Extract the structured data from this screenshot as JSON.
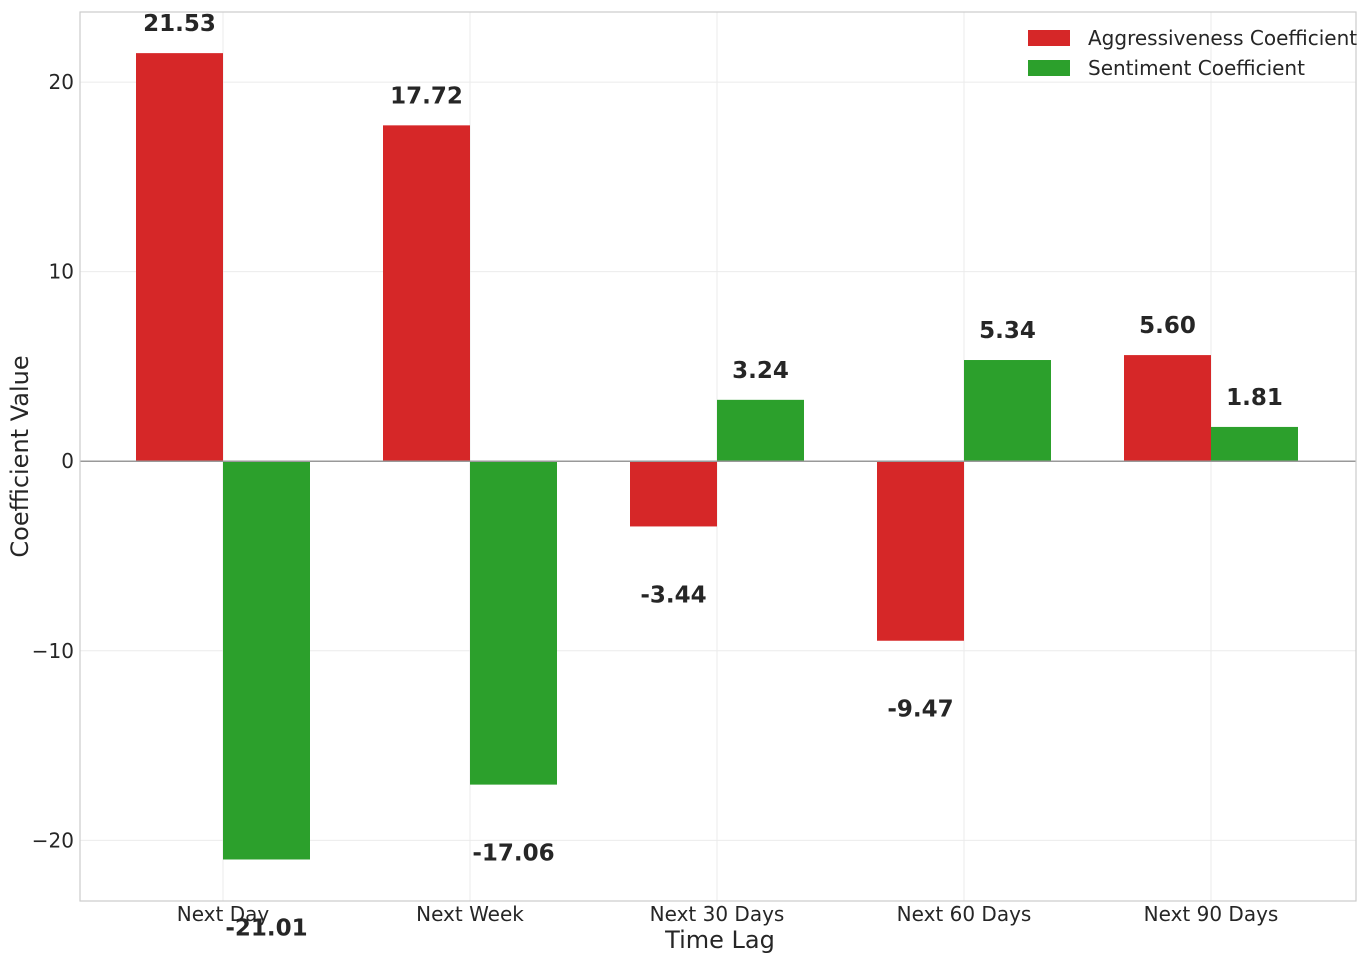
{
  "chart_data": {
    "type": "bar",
    "title": "",
    "xlabel": "Time Lag",
    "ylabel": "Coefficient Value",
    "categories": [
      "Next Day",
      "Next Week",
      "Next 30 Days",
      "Next 60 Days",
      "Next 90 Days"
    ],
    "series": [
      {
        "name": "Aggressiveness Coefficient",
        "color": "#d62728",
        "values": [
          21.53,
          17.72,
          -3.44,
          -9.47,
          5.6
        ],
        "labels": [
          "21.53",
          "17.72",
          "-3.44",
          "-9.47",
          "5.60"
        ]
      },
      {
        "name": "Sentiment Coefficient",
        "color": "#2ca02c",
        "values": [
          -21.01,
          -17.06,
          3.24,
          5.34,
          1.81
        ],
        "labels": [
          "-21.01",
          "-17.06",
          "3.24",
          "5.34",
          "1.81"
        ]
      }
    ],
    "ylim": [
      -23.2,
      23.7
    ],
    "yticks": [
      -20,
      -10,
      0,
      10,
      20
    ],
    "ytick_labels": [
      "−20",
      "−10",
      "0",
      "10",
      "20"
    ],
    "grid": true,
    "legend": "top-right"
  }
}
